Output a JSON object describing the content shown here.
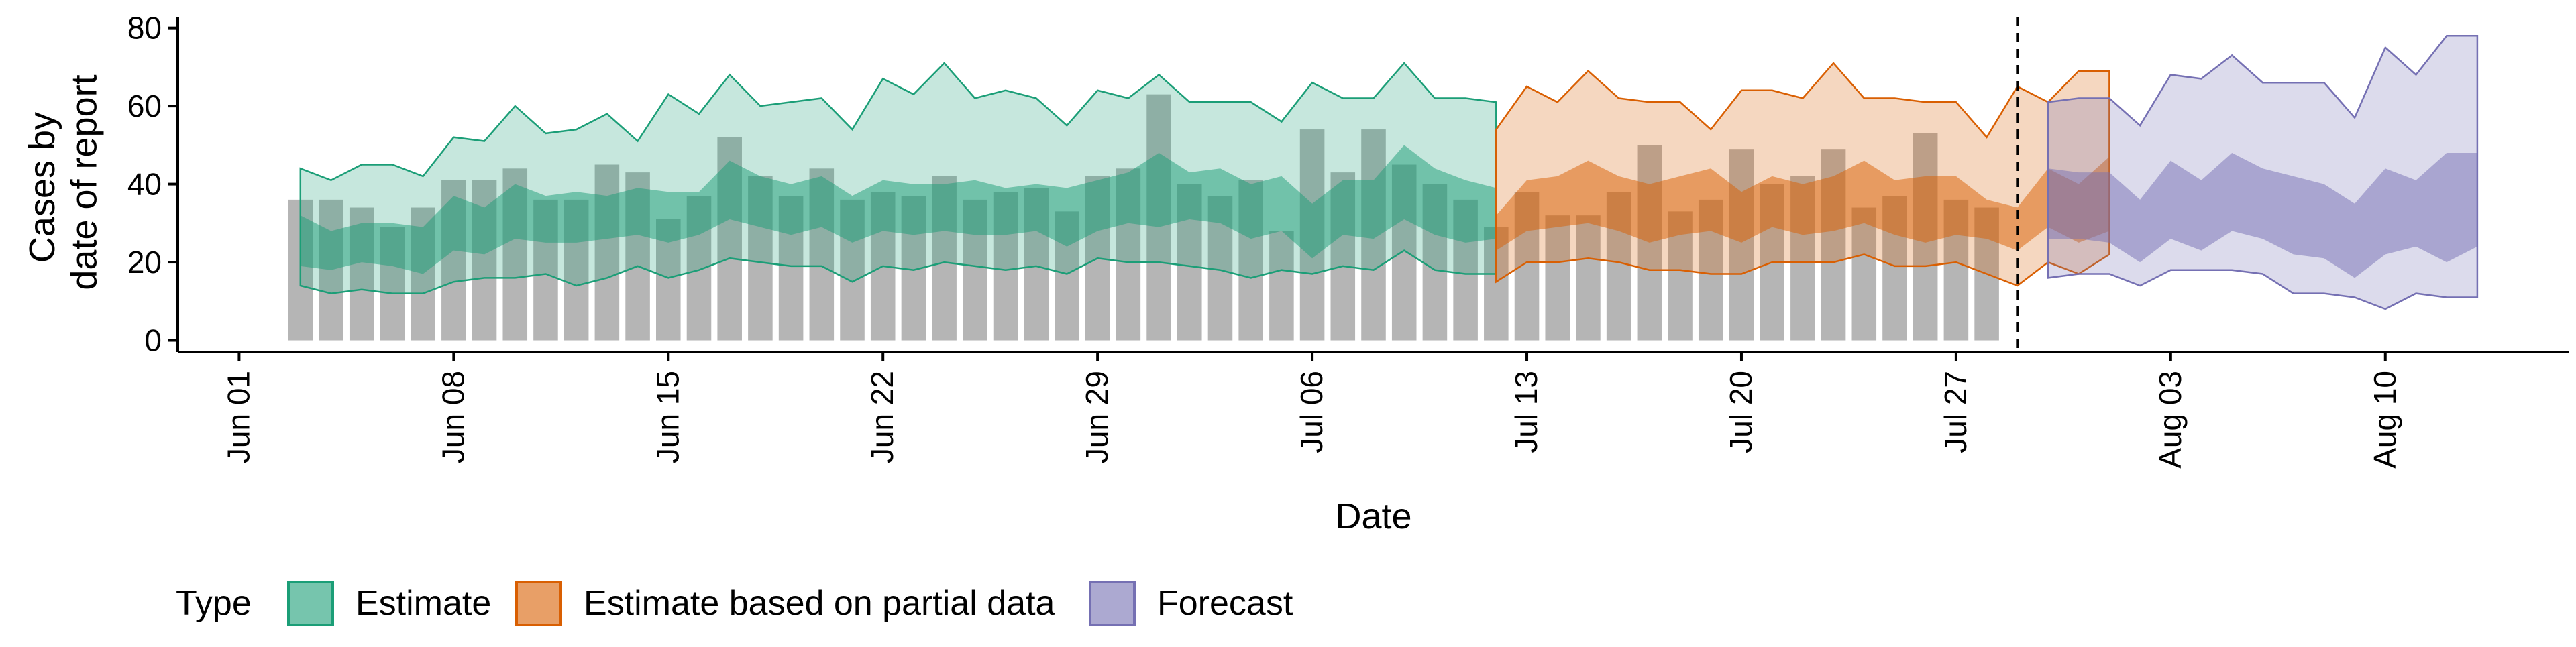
{
  "chart_data": {
    "type": "area",
    "title": "",
    "xlabel": "Date",
    "ylabel": [
      "Cases by",
      "date of report"
    ],
    "xlim": [
      "2020-05-30",
      "2020-08-16"
    ],
    "ylim": [
      -3,
      82
    ],
    "yticks": [
      0,
      20,
      40,
      60,
      80
    ],
    "xticks": [
      {
        "date": "2020-06-01",
        "label": "Jun 01"
      },
      {
        "date": "2020-06-08",
        "label": "Jun 08"
      },
      {
        "date": "2020-06-15",
        "label": "Jun 15"
      },
      {
        "date": "2020-06-22",
        "label": "Jun 22"
      },
      {
        "date": "2020-06-29",
        "label": "Jun 29"
      },
      {
        "date": "2020-07-06",
        "label": "Jul 06"
      },
      {
        "date": "2020-07-13",
        "label": "Jul 13"
      },
      {
        "date": "2020-07-20",
        "label": "Jul 20"
      },
      {
        "date": "2020-07-27",
        "label": "Jul 27"
      },
      {
        "date": "2020-08-03",
        "label": "Aug 03"
      },
      {
        "date": "2020-08-10",
        "label": "Aug 10"
      }
    ],
    "reference_line": {
      "date": "2020-07-29",
      "style": "dashed"
    },
    "legend": {
      "title": "Type",
      "placement": "bottom",
      "entries": [
        "Estimate",
        "Estimate based on partial data",
        "Forecast"
      ]
    },
    "colors": {
      "bars": "#b5b5b5",
      "estimate": "#1b9e77",
      "estimate_partial": "#d95f02",
      "forecast": "#7570b3"
    },
    "bars": {
      "start_date": "2020-06-03",
      "values": [
        36,
        36,
        34,
        29,
        34,
        41,
        41,
        44,
        36,
        36,
        45,
        43,
        31,
        37,
        52,
        42,
        37,
        44,
        36,
        38,
        37,
        42,
        36,
        38,
        39,
        33,
        42,
        44,
        63,
        40,
        37,
        41,
        28,
        54,
        43,
        54,
        45,
        40,
        36,
        29,
        38,
        32,
        32,
        38,
        50,
        33,
        36,
        49,
        40,
        42,
        49,
        34,
        37,
        53,
        36,
        34
      ]
    },
    "series": [
      {
        "name": "Estimate",
        "start_date": "2020-06-03",
        "lower90": [
          14,
          12,
          13,
          12,
          12,
          15,
          16,
          16,
          17,
          14,
          16,
          19,
          16,
          18,
          21,
          20,
          19,
          19,
          15,
          19,
          18,
          20,
          19,
          18,
          19,
          17,
          21,
          20,
          20,
          19,
          18,
          16,
          18,
          17,
          19,
          18,
          23,
          18,
          17,
          17
        ],
        "lower50": [
          19,
          18,
          20,
          19,
          17,
          23,
          22,
          26,
          25,
          25,
          26,
          27,
          25,
          27,
          31,
          29,
          27,
          29,
          25,
          28,
          27,
          28,
          27,
          27,
          28,
          24,
          28,
          30,
          29,
          31,
          30,
          26,
          28,
          21,
          27,
          26,
          31,
          27,
          25,
          26
        ],
        "upper50": [
          32,
          28,
          30,
          30,
          29,
          37,
          34,
          40,
          37,
          38,
          37,
          39,
          38,
          38,
          46,
          42,
          40,
          42,
          37,
          41,
          40,
          40,
          41,
          39,
          40,
          39,
          41,
          43,
          48,
          43,
          44,
          40,
          42,
          35,
          41,
          41,
          50,
          44,
          41,
          39
        ],
        "upper90": [
          44,
          41,
          45,
          45,
          42,
          52,
          51,
          60,
          53,
          54,
          58,
          51,
          63,
          58,
          68,
          60,
          61,
          62,
          54,
          67,
          63,
          71,
          62,
          64,
          62,
          55,
          64,
          62,
          68,
          61,
          61,
          61,
          56,
          66,
          62,
          62,
          71,
          62,
          62,
          61
        ]
      },
      {
        "name": "Estimate based on partial data",
        "start_date": "2020-07-12",
        "lower90": [
          15,
          20,
          20,
          21,
          20,
          18,
          18,
          17,
          17,
          20,
          20,
          20,
          22,
          19,
          19,
          20,
          17,
          14,
          20,
          17,
          22
        ],
        "lower50": [
          23,
          28,
          29,
          30,
          28,
          25,
          27,
          28,
          25,
          29,
          27,
          28,
          30,
          27,
          25,
          27,
          26,
          23,
          29,
          25,
          28
        ],
        "upper50": [
          32,
          41,
          42,
          46,
          42,
          40,
          42,
          44,
          38,
          42,
          40,
          42,
          46,
          41,
          42,
          42,
          36,
          34,
          44,
          40,
          47
        ],
        "upper90": [
          54,
          65,
          61,
          69,
          62,
          61,
          61,
          54,
          64,
          64,
          62,
          71,
          62,
          62,
          61,
          61,
          52,
          65,
          61,
          69,
          69
        ]
      },
      {
        "name": "Forecast",
        "start_date": "2020-07-30",
        "lower90": [
          16,
          17,
          17,
          14,
          18,
          18,
          18,
          17,
          12,
          12,
          11,
          8,
          12,
          11,
          11
        ],
        "lower50": [
          26,
          26,
          25,
          20,
          26,
          23,
          28,
          26,
          22,
          21,
          16,
          22,
          24,
          20,
          24
        ],
        "upper50": [
          44,
          43,
          43,
          36,
          46,
          41,
          48,
          44,
          42,
          40,
          35,
          44,
          41,
          48,
          48
        ],
        "upper90": [
          61,
          62,
          62,
          55,
          68,
          67,
          73,
          66,
          66,
          66,
          57,
          75,
          68,
          78,
          78
        ]
      }
    ]
  }
}
